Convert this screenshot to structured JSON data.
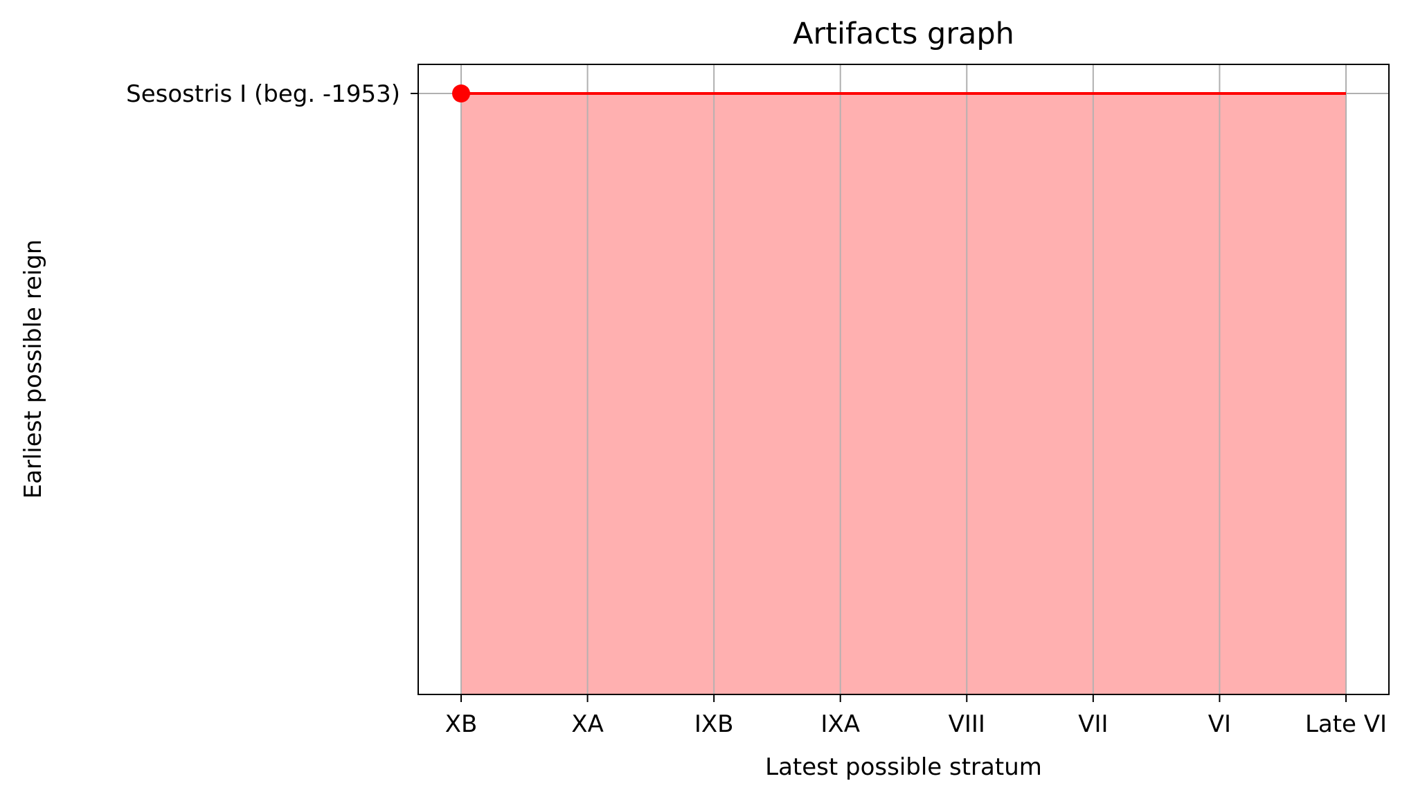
{
  "chart_data": {
    "type": "line",
    "title": "Artifacts graph",
    "xlabel": "Latest possible stratum",
    "ylabel": "Earliest possible reign",
    "categories": [
      "XB",
      "XA",
      "IXB",
      "IXA",
      "VIII",
      "VII",
      "VI",
      "Late VI"
    ],
    "y_categories": [
      "Sesostris I (beg. -1953)"
    ],
    "series": [
      {
        "x_start": "XB",
        "x_end": "Late VI",
        "y": "Sesostris I (beg. -1953)",
        "marker_at": "XB",
        "color": "#ff0000",
        "fill_color": "#ffb0b0",
        "fill_below": true
      }
    ],
    "grid": true,
    "legend": "none"
  }
}
